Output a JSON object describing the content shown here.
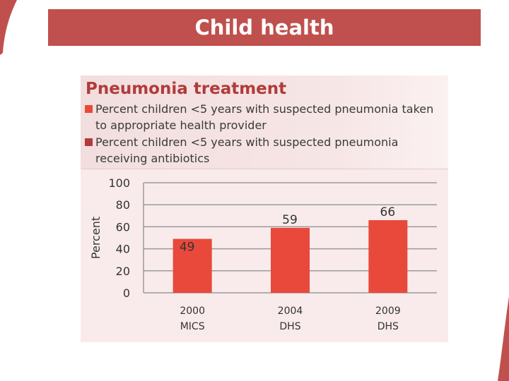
{
  "slide": {
    "banner_title": "Child health",
    "accent_color": "#c0504d"
  },
  "chart_data": {
    "type": "bar",
    "title": "Pneumonia treatment",
    "legend": [
      {
        "label": "Percent children <5 years with suspected pneumonia taken to appropriate health provider",
        "color": "#e8493b"
      },
      {
        "label": "Percent children <5 years with suspected pneumonia receiving antibiotics",
        "color": "#b13b3b"
      }
    ],
    "ylabel": "Percent",
    "xlabel": "",
    "ylim": [
      0,
      100
    ],
    "yticks": [
      "100",
      "80",
      "60",
      "40",
      "20",
      "0"
    ],
    "grid": true,
    "categories": [
      {
        "line1": "2000",
        "line2": "MICS"
      },
      {
        "line1": "2004",
        "line2": "DHS"
      },
      {
        "line1": "2009",
        "line2": "DHS"
      }
    ],
    "series": [
      {
        "name": "Percent children <5 years with suspected pneumonia taken to appropriate health provider",
        "color": "#e8493b",
        "values": [
          49,
          59,
          66
        ]
      }
    ],
    "data_labels": [
      "49",
      "59",
      "66"
    ]
  }
}
